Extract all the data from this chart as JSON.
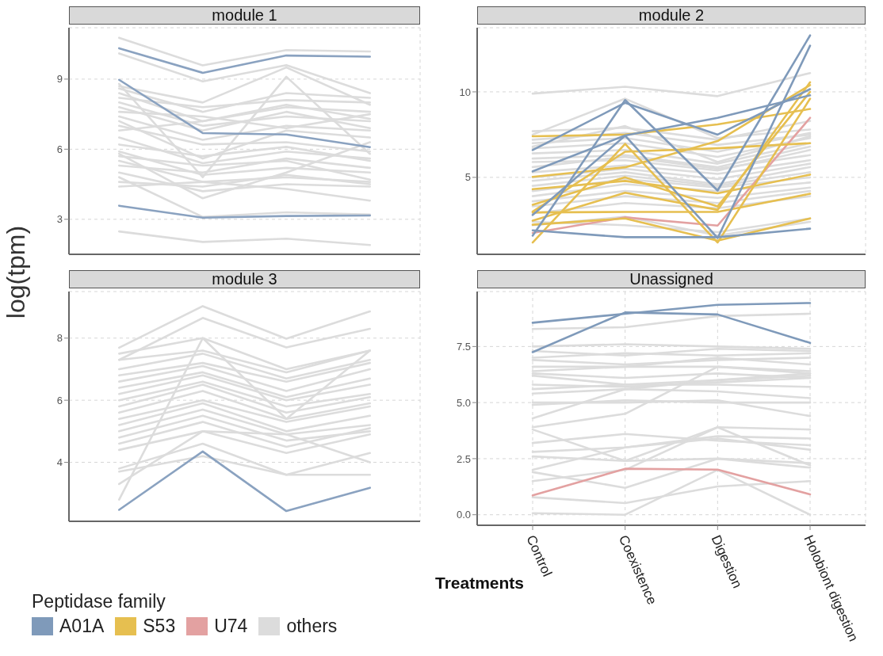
{
  "chart_data": [
    {
      "type": "line",
      "title": "module 1",
      "ylabel": "log(tpm)",
      "categories": [
        null,
        null,
        null,
        null
      ],
      "ylim": [
        1.5,
        11.2
      ],
      "yticks": [
        3,
        6,
        9
      ],
      "grid": true,
      "tick_labels": "y",
      "series": [
        {
          "color": "#8aa2c0",
          "values": [
            10.32,
            9.27,
            10.01,
            9.96
          ]
        },
        {
          "color": "#8aa2c0",
          "values": [
            8.97,
            6.69,
            6.63,
            6.09
          ]
        },
        {
          "color": "#8aa2c0",
          "values": [
            3.58,
            3.07,
            3.14,
            3.16
          ]
        },
        {
          "color": "#dcdcdc",
          "values": [
            10.77,
            9.59,
            10.24,
            10.18
          ]
        },
        {
          "color": "#dcdcdc",
          "values": [
            10.1,
            8.9,
            9.6,
            8.4
          ]
        },
        {
          "color": "#dcdcdc",
          "values": [
            2.48,
            2.03,
            2.17,
            1.9
          ]
        },
        {
          "color": "#dcdcdc",
          "values": [
            8.7,
            8.0,
            9.5,
            7.9
          ]
        },
        {
          "color": "#dcdcdc",
          "values": [
            8.6,
            7.6,
            8.4,
            8.2
          ]
        },
        {
          "color": "#dcdcdc",
          "values": [
            8.4,
            7.2,
            7.8,
            7.6
          ]
        },
        {
          "color": "#dcdcdc",
          "values": [
            8.2,
            7.8,
            8.1,
            8.0
          ]
        },
        {
          "color": "#dcdcdc",
          "values": [
            8.0,
            7.0,
            7.4,
            7.2
          ]
        },
        {
          "color": "#dcdcdc",
          "values": [
            7.8,
            6.8,
            7.6,
            6.9
          ]
        },
        {
          "color": "#dcdcdc",
          "values": [
            7.6,
            7.4,
            6.9,
            7.5
          ]
        },
        {
          "color": "#dcdcdc",
          "values": [
            7.4,
            6.4,
            7.0,
            6.8
          ]
        },
        {
          "color": "#dcdcdc",
          "values": [
            7.2,
            5.6,
            6.8,
            6.5
          ]
        },
        {
          "color": "#dcdcdc",
          "values": [
            7.0,
            6.2,
            6.3,
            5.9
          ]
        },
        {
          "color": "#dcdcdc",
          "values": [
            6.8,
            7.2,
            7.9,
            7.3
          ]
        },
        {
          "color": "#dcdcdc",
          "values": [
            6.5,
            5.4,
            5.9,
            5.6
          ]
        },
        {
          "color": "#dcdcdc",
          "values": [
            6.2,
            5.7,
            6.1,
            5.5
          ]
        },
        {
          "color": "#dcdcdc",
          "values": [
            5.9,
            4.9,
            5.2,
            5.0
          ]
        },
        {
          "color": "#dcdcdc",
          "values": [
            5.7,
            5.3,
            5.5,
            4.7
          ]
        },
        {
          "color": "#dcdcdc",
          "values": [
            5.5,
            4.6,
            4.8,
            4.6
          ]
        },
        {
          "color": "#dcdcdc",
          "values": [
            5.3,
            5.0,
            5.6,
            5.2
          ]
        },
        {
          "color": "#dcdcdc",
          "values": [
            5.0,
            4.2,
            4.5,
            4.4
          ]
        },
        {
          "color": "#dcdcdc",
          "values": [
            4.8,
            3.1,
            3.3,
            3.2
          ]
        },
        {
          "color": "#dcdcdc",
          "values": [
            4.6,
            4.4,
            4.9,
            4.5
          ]
        },
        {
          "color": "#dcdcdc",
          "values": [
            4.4,
            4.6,
            4.3,
            3.8
          ]
        },
        {
          "color": "#dcdcdc",
          "values": [
            8.8,
            4.8,
            9.1,
            5.8
          ]
        },
        {
          "color": "#dcdcdc",
          "values": [
            5.8,
            3.9,
            5.0,
            6.3
          ]
        }
      ]
    },
    {
      "type": "line",
      "title": "module 2",
      "legend_title": "Peptidase family",
      "legend": "bottom left",
      "categories": [
        null,
        null,
        null,
        null
      ],
      "ylim": [
        0.5,
        13.75
      ],
      "yticks": [
        5,
        10
      ],
      "grid": true,
      "tick_labels": "y",
      "series": [
        {
          "name": "A01A",
          "color": "#7f9aba",
          "values": [
            6.6,
            9.36,
            7.5,
            10.16
          ]
        },
        {
          "color": "#7f9aba",
          "values": [
            5.35,
            7.45,
            8.48,
            9.8
          ]
        },
        {
          "color": "#7f9aba",
          "values": [
            1.59,
            9.52,
            4.23,
            13.3
          ]
        },
        {
          "color": "#7f9aba",
          "values": [
            2.8,
            7.44,
            1.45,
            12.7
          ]
        },
        {
          "color": "#7f9aba",
          "values": [
            1.9,
            1.5,
            1.5,
            2.0
          ]
        },
        {
          "name": "S53",
          "color": "#e6bf50",
          "values": [
            7.4,
            7.5,
            8.1,
            9.0
          ]
        },
        {
          "color": "#e6bf50",
          "values": [
            5.03,
            5.59,
            7.12,
            10.4
          ]
        },
        {
          "color": "#e6bf50",
          "values": [
            4.31,
            4.79,
            4.07,
            5.16
          ]
        },
        {
          "color": "#e6bf50",
          "values": [
            2.95,
            2.98,
            2.98,
            4.04
          ]
        },
        {
          "color": "#e6bf50",
          "values": [
            1.19,
            6.96,
            1.19,
            9.6
          ]
        },
        {
          "color": "#e6bf50",
          "values": [
            2.47,
            4.1,
            3.1,
            10.56
          ]
        },
        {
          "color": "#e6bf50",
          "values": [
            2.23,
            2.6,
            1.3,
            2.6
          ]
        },
        {
          "color": "#e6bf50",
          "values": [
            3.0,
            6.5,
            6.7,
            7.0
          ]
        },
        {
          "color": "#e6bf50",
          "values": [
            3.4,
            5.0,
            3.3,
            10.0
          ]
        },
        {
          "name": "U74",
          "color": "#e3a1a1",
          "values": [
            1.75,
            2.66,
            2.18,
            8.48
          ]
        },
        {
          "name": "others",
          "color": "#dcdcdc",
          "values": [
            9.9,
            10.3,
            9.75,
            11.1
          ]
        },
        {
          "color": "#dcdcdc",
          "values": [
            7.7,
            7.9,
            7.2,
            8.3
          ]
        },
        {
          "color": "#dcdcdc",
          "values": [
            7.5,
            9.6,
            7.3,
            7.8
          ]
        },
        {
          "color": "#dcdcdc",
          "values": [
            7.2,
            7.6,
            6.9,
            7.5
          ]
        },
        {
          "color": "#dcdcdc",
          "values": [
            7.0,
            7.3,
            6.5,
            7.6
          ]
        },
        {
          "color": "#dcdcdc",
          "values": [
            6.7,
            7.0,
            6.2,
            7.3
          ]
        },
        {
          "color": "#dcdcdc",
          "values": [
            6.4,
            6.6,
            5.8,
            7.0
          ]
        },
        {
          "color": "#dcdcdc",
          "values": [
            6.1,
            6.3,
            5.6,
            6.8
          ]
        },
        {
          "color": "#dcdcdc",
          "values": [
            5.9,
            6.0,
            5.4,
            6.6
          ]
        },
        {
          "color": "#dcdcdc",
          "values": [
            5.6,
            6.2,
            5.5,
            6.3
          ]
        },
        {
          "color": "#dcdcdc",
          "values": [
            5.3,
            5.7,
            5.2,
            6.0
          ]
        },
        {
          "color": "#dcdcdc",
          "values": [
            5.0,
            5.5,
            4.9,
            5.8
          ]
        },
        {
          "color": "#dcdcdc",
          "values": [
            4.8,
            5.3,
            4.6,
            5.6
          ]
        },
        {
          "color": "#dcdcdc",
          "values": [
            4.5,
            5.1,
            4.5,
            5.3
          ]
        },
        {
          "color": "#dcdcdc",
          "values": [
            4.2,
            4.9,
            4.4,
            5.0
          ]
        },
        {
          "color": "#dcdcdc",
          "values": [
            3.9,
            4.6,
            4.2,
            4.7
          ]
        },
        {
          "color": "#dcdcdc",
          "values": [
            3.6,
            4.2,
            3.8,
            4.4
          ]
        },
        {
          "color": "#dcdcdc",
          "values": [
            3.3,
            3.9,
            3.5,
            4.2
          ]
        },
        {
          "color": "#dcdcdc",
          "values": [
            2.9,
            3.5,
            3.2,
            3.9
          ]
        },
        {
          "color": "#dcdcdc",
          "values": [
            2.4,
            2.2,
            1.8,
            2.6
          ]
        },
        {
          "color": "#dcdcdc",
          "values": [
            2.2,
            2.7,
            1.6,
            2.4
          ]
        },
        {
          "color": "#dcdcdc",
          "values": [
            6.8,
            8.0,
            5.9,
            7.4
          ]
        }
      ]
    },
    {
      "type": "line",
      "title": "module 3",
      "categories": [
        null,
        null,
        null,
        null
      ],
      "ylim": [
        2.1,
        9.5
      ],
      "yticks": [
        4,
        6,
        8
      ],
      "grid": true,
      "tick_labels": "y",
      "series": [
        {
          "color": "#8aa2c0",
          "values": [
            2.47,
            4.35,
            2.43,
            3.18
          ]
        },
        {
          "color": "#dcdcdc",
          "values": [
            7.69,
            9.03,
            7.98,
            8.86
          ]
        },
        {
          "color": "#dcdcdc",
          "values": [
            7.3,
            8.65,
            7.7,
            8.3
          ]
        },
        {
          "color": "#dcdcdc",
          "values": [
            7.5,
            8.0,
            7.0,
            7.6
          ]
        },
        {
          "color": "#dcdcdc",
          "values": [
            7.3,
            7.6,
            6.9,
            7.6
          ]
        },
        {
          "color": "#dcdcdc",
          "values": [
            7.0,
            7.5,
            6.7,
            7.3
          ]
        },
        {
          "color": "#dcdcdc",
          "values": [
            6.8,
            7.2,
            6.6,
            7.2
          ]
        },
        {
          "color": "#dcdcdc",
          "values": [
            6.6,
            7.1,
            6.3,
            7.0
          ]
        },
        {
          "color": "#dcdcdc",
          "values": [
            6.4,
            6.9,
            6.1,
            6.7
          ]
        },
        {
          "color": "#dcdcdc",
          "values": [
            6.2,
            6.8,
            6.0,
            6.5
          ]
        },
        {
          "color": "#dcdcdc",
          "values": [
            6.0,
            6.6,
            5.8,
            6.2
          ]
        },
        {
          "color": "#dcdcdc",
          "values": [
            5.8,
            6.5,
            5.6,
            6.1
          ]
        },
        {
          "color": "#dcdcdc",
          "values": [
            5.6,
            6.3,
            5.4,
            5.9
          ]
        },
        {
          "color": "#dcdcdc",
          "values": [
            5.4,
            6.0,
            5.3,
            5.8
          ]
        },
        {
          "color": "#dcdcdc",
          "values": [
            5.2,
            5.9,
            5.0,
            5.5
          ]
        },
        {
          "color": "#dcdcdc",
          "values": [
            5.0,
            5.7,
            4.9,
            5.2
          ]
        },
        {
          "color": "#dcdcdc",
          "values": [
            4.8,
            5.5,
            4.7,
            5.0
          ]
        },
        {
          "color": "#dcdcdc",
          "values": [
            4.6,
            5.3,
            4.5,
            5.1
          ]
        },
        {
          "color": "#dcdcdc",
          "values": [
            4.4,
            5.0,
            4.3,
            4.9
          ]
        },
        {
          "color": "#dcdcdc",
          "values": [
            3.8,
            4.6,
            3.6,
            4.3
          ]
        },
        {
          "color": "#dcdcdc",
          "values": [
            3.7,
            4.2,
            3.6,
            3.6
          ]
        },
        {
          "color": "#dcdcdc",
          "values": [
            2.8,
            8.0,
            5.4,
            7.6
          ]
        },
        {
          "color": "#dcdcdc",
          "values": [
            3.3,
            5.0,
            4.9,
            4.0
          ]
        }
      ]
    },
    {
      "type": "line",
      "title": "Unassigned",
      "xlabel": "Treatments",
      "categories": [
        "Control",
        "Coexistence",
        "Digestion",
        "Holobiont digestion"
      ],
      "ylim": [
        -0.47,
        9.95
      ],
      "yticks": [
        {
          "value": 0,
          "label": "0.0"
        },
        {
          "value": 2.5,
          "label": "2.5"
        },
        {
          "value": 5,
          "label": "5.0"
        },
        {
          "value": 7.5,
          "label": "7.5"
        }
      ],
      "grid": true,
      "series": [
        {
          "color": "#7f9aba",
          "values": [
            8.56,
            8.96,
            9.36,
            9.44
          ]
        },
        {
          "color": "#7f9aba",
          "values": [
            7.25,
            9.02,
            8.93,
            7.66
          ]
        },
        {
          "color": "#e3a1a1",
          "values": [
            0.86,
            2.05,
            2.01,
            0.91
          ]
        },
        {
          "color": "#dcdcdc",
          "values": [
            8.28,
            8.36,
            8.86,
            8.96
          ]
        },
        {
          "color": "#dcdcdc",
          "values": [
            7.5,
            7.6,
            7.5,
            7.4
          ]
        },
        {
          "color": "#dcdcdc",
          "values": [
            7.3,
            7.1,
            7.4,
            7.3
          ]
        },
        {
          "color": "#dcdcdc",
          "values": [
            7.0,
            7.2,
            7.1,
            7.2
          ]
        },
        {
          "color": "#dcdcdc",
          "values": [
            6.9,
            6.7,
            6.9,
            7.0
          ]
        },
        {
          "color": "#dcdcdc",
          "values": [
            6.6,
            6.6,
            7.0,
            6.7
          ]
        },
        {
          "color": "#dcdcdc",
          "values": [
            6.4,
            6.6,
            6.6,
            6.3
          ]
        },
        {
          "color": "#dcdcdc",
          "values": [
            6.3,
            6.1,
            6.3,
            6.1
          ]
        },
        {
          "color": "#dcdcdc",
          "values": [
            6.2,
            5.8,
            5.8,
            5.7
          ]
        },
        {
          "color": "#dcdcdc",
          "values": [
            5.8,
            5.7,
            5.9,
            6.1
          ]
        },
        {
          "color": "#dcdcdc",
          "values": [
            5.6,
            5.8,
            6.0,
            6.3
          ]
        },
        {
          "color": "#dcdcdc",
          "values": [
            5.4,
            5.6,
            5.5,
            5.2
          ]
        },
        {
          "color": "#dcdcdc",
          "values": [
            5.0,
            5.0,
            5.1,
            4.4
          ]
        },
        {
          "color": "#dcdcdc",
          "values": [
            4.9,
            5.1,
            5.0,
            5.0
          ]
        },
        {
          "color": "#dcdcdc",
          "values": [
            4.3,
            5.6,
            6.0,
            6.2
          ]
        },
        {
          "color": "#dcdcdc",
          "values": [
            3.9,
            4.5,
            6.6,
            6.4
          ]
        },
        {
          "color": "#dcdcdc",
          "values": [
            3.8,
            2.4,
            3.9,
            2.2
          ]
        },
        {
          "color": "#dcdcdc",
          "values": [
            3.2,
            3.6,
            3.3,
            3.1
          ]
        },
        {
          "color": "#dcdcdc",
          "values": [
            2.8,
            3.0,
            3.5,
            3.4
          ]
        },
        {
          "color": "#dcdcdc",
          "values": [
            2.6,
            2.4,
            2.5,
            2.3
          ]
        },
        {
          "color": "#dcdcdc",
          "values": [
            2.0,
            3.0,
            3.4,
            2.9
          ]
        },
        {
          "color": "#dcdcdc",
          "values": [
            1.9,
            1.2,
            2.5,
            2.1
          ]
        },
        {
          "color": "#dcdcdc",
          "values": [
            1.5,
            2.0,
            3.9,
            3.8
          ]
        },
        {
          "color": "#dcdcdc",
          "values": [
            0.78,
            0.52,
            1.26,
            1.5
          ]
        },
        {
          "color": "#dcdcdc",
          "values": [
            0.07,
            0.0,
            2.0,
            0.0
          ]
        }
      ]
    }
  ]
}
